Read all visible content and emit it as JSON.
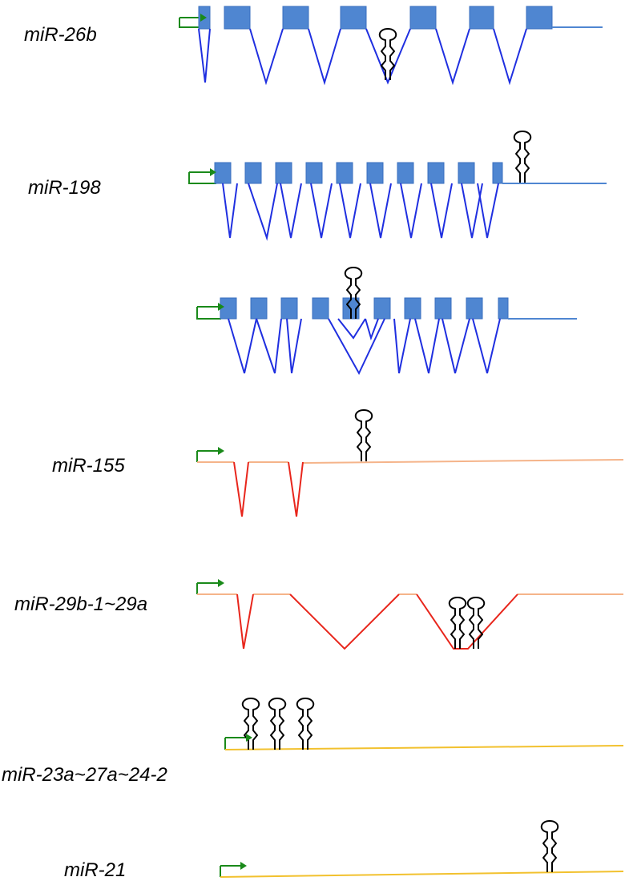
{
  "colors": {
    "exon": "#4f86d1",
    "exon_stroke": "#3a6fbf",
    "splice_blue": "#1f2fe0",
    "splice_red": "#e8261c",
    "transcript_blue": "#4f86d1",
    "transcript_salmon": "#f5b48a",
    "transcript_gold": "#f2c12e",
    "promoter_arrow": "#1a8a1a",
    "hairpin": "#000000"
  },
  "genes": [
    {
      "id": "mir-26b",
      "label": "miR-26b"
    },
    {
      "id": "mir-198",
      "label": "miR-198"
    },
    {
      "id": "mir-198-alt",
      "label": ""
    },
    {
      "id": "mir-155",
      "label": "miR-155"
    },
    {
      "id": "mir-29b-1-29a",
      "label": "miR-29b-1~29a"
    },
    {
      "id": "mir-23a-27a-24-2",
      "label": "miR-23a~27a~24-2"
    },
    {
      "id": "mir-21",
      "label": "miR-21"
    }
  ]
}
